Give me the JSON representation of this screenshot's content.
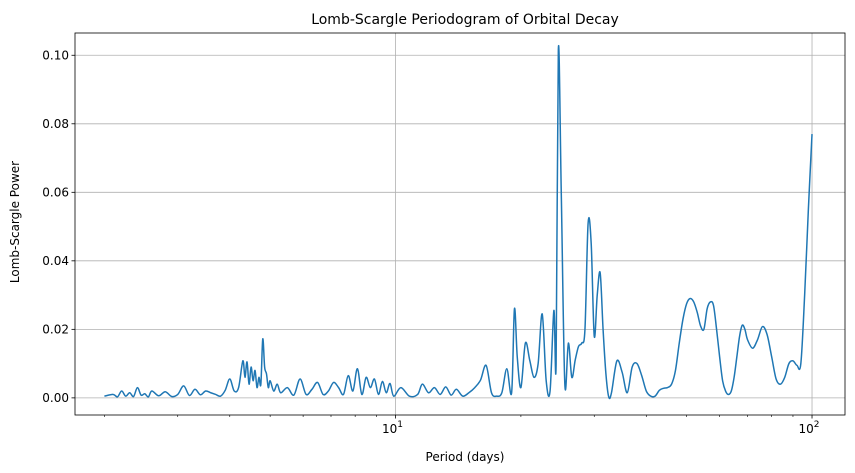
{
  "chart_data": {
    "type": "line",
    "title": "Lomb-Scargle Periodogram of Orbital Decay",
    "xlabel": "Period (days)",
    "ylabel": "Lomb-Scargle Power",
    "xscale": "log",
    "xlim": [
      1.7,
      120
    ],
    "ylim": [
      -0.005,
      0.1065
    ],
    "grid": true,
    "line_color": "#1f77b4",
    "x_ticks": [
      {
        "base": "10",
        "exp": "1",
        "value": 10
      },
      {
        "base": "10",
        "exp": "2",
        "value": 100
      }
    ],
    "y_ticks": [
      "0.00",
      "0.02",
      "0.04",
      "0.06",
      "0.08",
      "0.10"
    ],
    "series": [
      {
        "x": [
          2.0,
          2.1,
          2.15,
          2.2,
          2.25,
          2.3,
          2.35,
          2.4,
          2.45,
          2.5,
          2.55,
          2.6,
          2.7,
          2.8,
          2.9,
          3.0,
          3.1,
          3.2,
          3.3,
          3.4,
          3.5,
          3.6,
          3.7,
          3.8,
          3.9,
          4.0,
          4.1,
          4.2,
          4.3,
          4.35,
          4.4,
          4.45,
          4.5,
          4.55,
          4.6,
          4.65,
          4.7,
          4.75,
          4.8,
          4.85,
          4.9,
          4.95,
          5.0,
          5.1,
          5.2,
          5.3,
          5.5,
          5.7,
          5.9,
          6.1,
          6.3,
          6.5,
          6.7,
          6.9,
          7.1,
          7.3,
          7.5,
          7.7,
          7.9,
          8.1,
          8.3,
          8.5,
          8.7,
          8.9,
          9.1,
          9.3,
          9.5,
          9.7,
          9.9,
          10.3,
          10.8,
          11.3,
          11.6,
          12.0,
          12.4,
          12.8,
          13.2,
          13.6,
          14.0,
          14.5,
          15.0,
          15.5,
          16.0,
          16.5,
          17.0,
          17.5,
          18.0,
          18.5,
          19.0,
          19.3,
          19.6,
          20.0,
          20.5,
          21.0,
          21.5,
          22.0,
          22.5,
          23.0,
          23.5,
          24.0,
          24.3,
          24.6,
          25.0,
          25.5,
          26.0,
          26.5,
          27.0,
          27.5,
          28.0,
          28.5,
          29.0,
          29.5,
          30.0,
          30.5,
          31.0,
          31.5,
          32.0,
          32.5,
          33.0,
          34.0,
          35.0,
          36.0,
          37.0,
          38.0,
          39.0,
          40.0,
          41.0,
          42.0,
          43.0,
          44.0,
          45.0,
          46.0,
          47.0,
          48.0,
          49.0,
          50.0,
          51.0,
          52.0,
          53.0,
          54.0,
          55.0,
          56.0,
          57.0,
          58.0,
          59.0,
          60.0,
          61.0,
          62.0,
          63.0,
          64.0,
          65.0,
          66.0,
          67.0,
          68.0,
          69.0,
          70.0,
          72.0,
          74.0,
          76.0,
          78.0,
          80.0,
          82.0,
          84.0,
          86.0,
          88.0,
          90.0,
          92.0,
          94.0,
          96.0,
          98.0,
          100.0
        ],
        "y": [
          0.0005,
          0.001,
          0.0003,
          0.002,
          0.0005,
          0.0015,
          0.0004,
          0.003,
          0.0008,
          0.0012,
          0.0003,
          0.002,
          0.0006,
          0.0018,
          0.0004,
          0.001,
          0.0035,
          0.0007,
          0.0025,
          0.0009,
          0.002,
          0.0015,
          0.001,
          0.0005,
          0.0022,
          0.0055,
          0.002,
          0.003,
          0.0108,
          0.006,
          0.0105,
          0.004,
          0.009,
          0.005,
          0.008,
          0.003,
          0.006,
          0.004,
          0.0172,
          0.009,
          0.007,
          0.003,
          0.005,
          0.002,
          0.004,
          0.0015,
          0.003,
          0.0008,
          0.0055,
          0.001,
          0.0025,
          0.0045,
          0.001,
          0.002,
          0.0045,
          0.003,
          0.001,
          0.0065,
          0.002,
          0.0085,
          0.001,
          0.006,
          0.003,
          0.0055,
          0.001,
          0.0048,
          0.0015,
          0.0042,
          0.0005,
          0.003,
          0.0005,
          0.001,
          0.004,
          0.0015,
          0.003,
          0.001,
          0.0032,
          0.0008,
          0.0025,
          0.0005,
          0.0015,
          0.003,
          0.0052,
          0.0095,
          0.0015,
          0.0005,
          0.0015,
          0.0085,
          0.0015,
          0.026,
          0.012,
          0.003,
          0.016,
          0.011,
          0.006,
          0.01,
          0.0245,
          0.005,
          0.002,
          0.0255,
          0.0101,
          0.1015,
          0.06,
          0.004,
          0.016,
          0.006,
          0.011,
          0.015,
          0.016,
          0.02,
          0.051,
          0.045,
          0.018,
          0.03,
          0.0365,
          0.02,
          0.007,
          0.0003,
          0.0015,
          0.0108,
          0.0075,
          0.0015,
          0.009,
          0.01,
          0.0065,
          0.002,
          0.0005,
          0.0005,
          0.0022,
          0.0028,
          0.003,
          0.004,
          0.008,
          0.016,
          0.023,
          0.0275,
          0.029,
          0.028,
          0.025,
          0.021,
          0.02,
          0.026,
          0.028,
          0.027,
          0.02,
          0.012,
          0.005,
          0.002,
          0.001,
          0.002,
          0.006,
          0.012,
          0.018,
          0.0212,
          0.02,
          0.017,
          0.0145,
          0.017,
          0.0208,
          0.0185,
          0.012,
          0.0055,
          0.004,
          0.006,
          0.01,
          0.0108,
          0.0095,
          0.01,
          0.03,
          0.055,
          0.077
        ]
      }
    ]
  }
}
